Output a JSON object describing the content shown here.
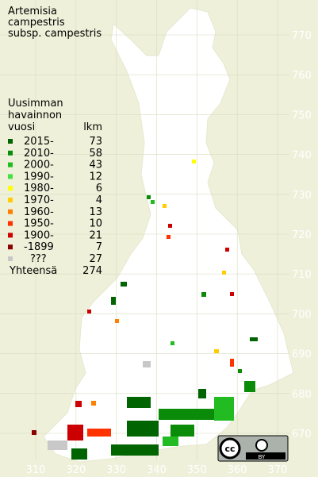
{
  "title": [
    "Artemisia",
    "campestris",
    "subsp. campestris"
  ],
  "legend": {
    "header": [
      "Uusimman",
      "havainnon"
    ],
    "col_year": "vuosi",
    "col_count": "lkm",
    "rows": [
      {
        "label": "2015-",
        "count": 73,
        "color": "#006400"
      },
      {
        "label": "2010-",
        "count": 58,
        "color": "#0a8c0a"
      },
      {
        "label": "2000-",
        "count": 43,
        "color": "#22bb22"
      },
      {
        "label": "1990-",
        "count": 12,
        "color": "#44e044"
      },
      {
        "label": "1980-",
        "count": 6,
        "color": "#ffff00"
      },
      {
        "label": "1970-",
        "count": 4,
        "color": "#ffcc00"
      },
      {
        "label": "1960-",
        "count": 13,
        "color": "#ff8000"
      },
      {
        "label": "1950-",
        "count": 10,
        "color": "#ff3300"
      },
      {
        "label": "1900-",
        "count": 21,
        "color": "#cc0000"
      },
      {
        "label": "-1899",
        "count": 7,
        "color": "#8b0000"
      },
      {
        "label": "???",
        "count": 27,
        "color": "#c8c8c8"
      }
    ],
    "total_label": "Yhteensä",
    "total": 274
  },
  "grid": {
    "north": [
      770,
      760,
      750,
      740,
      730,
      720,
      710,
      700,
      690,
      680,
      670
    ],
    "east": [
      310,
      320,
      330,
      340,
      350,
      360,
      370
    ]
  },
  "license": {
    "cc": "cc",
    "by": "BY"
  }
}
